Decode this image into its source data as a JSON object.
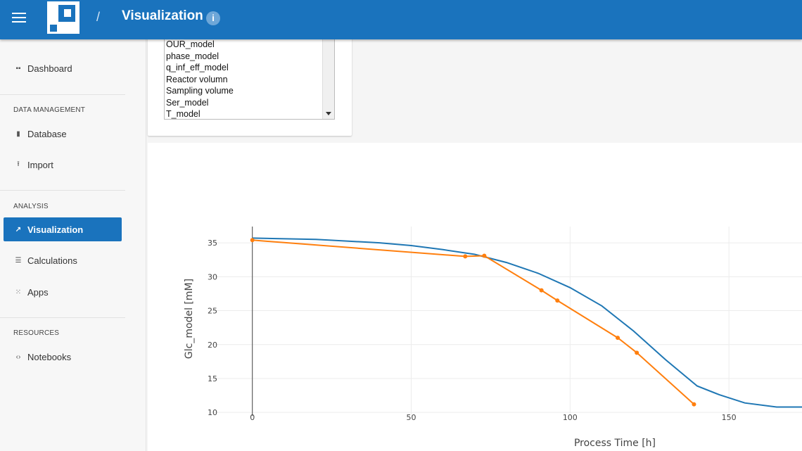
{
  "header": {
    "separator": "/",
    "title": "Visualization",
    "info_glyph": "i",
    "menu_icon": "hamburger-icon",
    "logo": "app-logo"
  },
  "sidebar": {
    "dashboard": {
      "label": "Dashboard",
      "icon": "dashboard-icon"
    },
    "sections": {
      "data_management": "DATA MANAGEMENT",
      "analysis": "ANALYSIS",
      "resources": "RESOURCES"
    },
    "items": {
      "database": {
        "label": "Database",
        "icon": "file-icon"
      },
      "import": {
        "label": "Import",
        "icon": "upload-icon"
      },
      "visualization": {
        "label": "Visualization",
        "icon": "chart-line-icon"
      },
      "calculations": {
        "label": "Calculations",
        "icon": "list-icon"
      },
      "apps": {
        "label": "Apps",
        "icon": "grid-icon"
      },
      "notebooks": {
        "label": "Notebooks",
        "icon": "code-icon"
      }
    },
    "active_color": "#1a73bd"
  },
  "variable_list": {
    "options": [
      "OUR_model",
      "phase_model",
      "q_inf_eff_model",
      "Reactor volumn",
      "Sampling volume",
      "Ser_model",
      "T_model"
    ]
  },
  "chart_data": {
    "type": "line",
    "xlabel": "Process Time [h]",
    "ylabel": "Glc_model [mM]",
    "x_ticks": [
      0,
      50,
      100,
      150
    ],
    "y_ticks": [
      10,
      15,
      20,
      25,
      30,
      35
    ],
    "xlim": [
      -13,
      173
    ],
    "ylim": [
      9.5,
      37.4
    ],
    "grid": true,
    "series": [
      {
        "color": "#1f77b4",
        "markers": false,
        "x": [
          0,
          20,
          40,
          50,
          60,
          70,
          80,
          90,
          100,
          110,
          120,
          130,
          140,
          147,
          155,
          165,
          173
        ],
        "y": [
          35.7,
          35.5,
          35.0,
          34.6,
          34.0,
          33.3,
          32.1,
          30.5,
          28.4,
          25.7,
          22.0,
          17.8,
          13.9,
          12.6,
          11.4,
          10.8,
          10.8
        ]
      },
      {
        "color": "#ff7f0e",
        "markers": true,
        "x": [
          0,
          67,
          73,
          91,
          96,
          115,
          121,
          139
        ],
        "y": [
          35.4,
          33.0,
          33.1,
          28.0,
          26.5,
          21.0,
          18.8,
          11.2
        ]
      }
    ]
  }
}
